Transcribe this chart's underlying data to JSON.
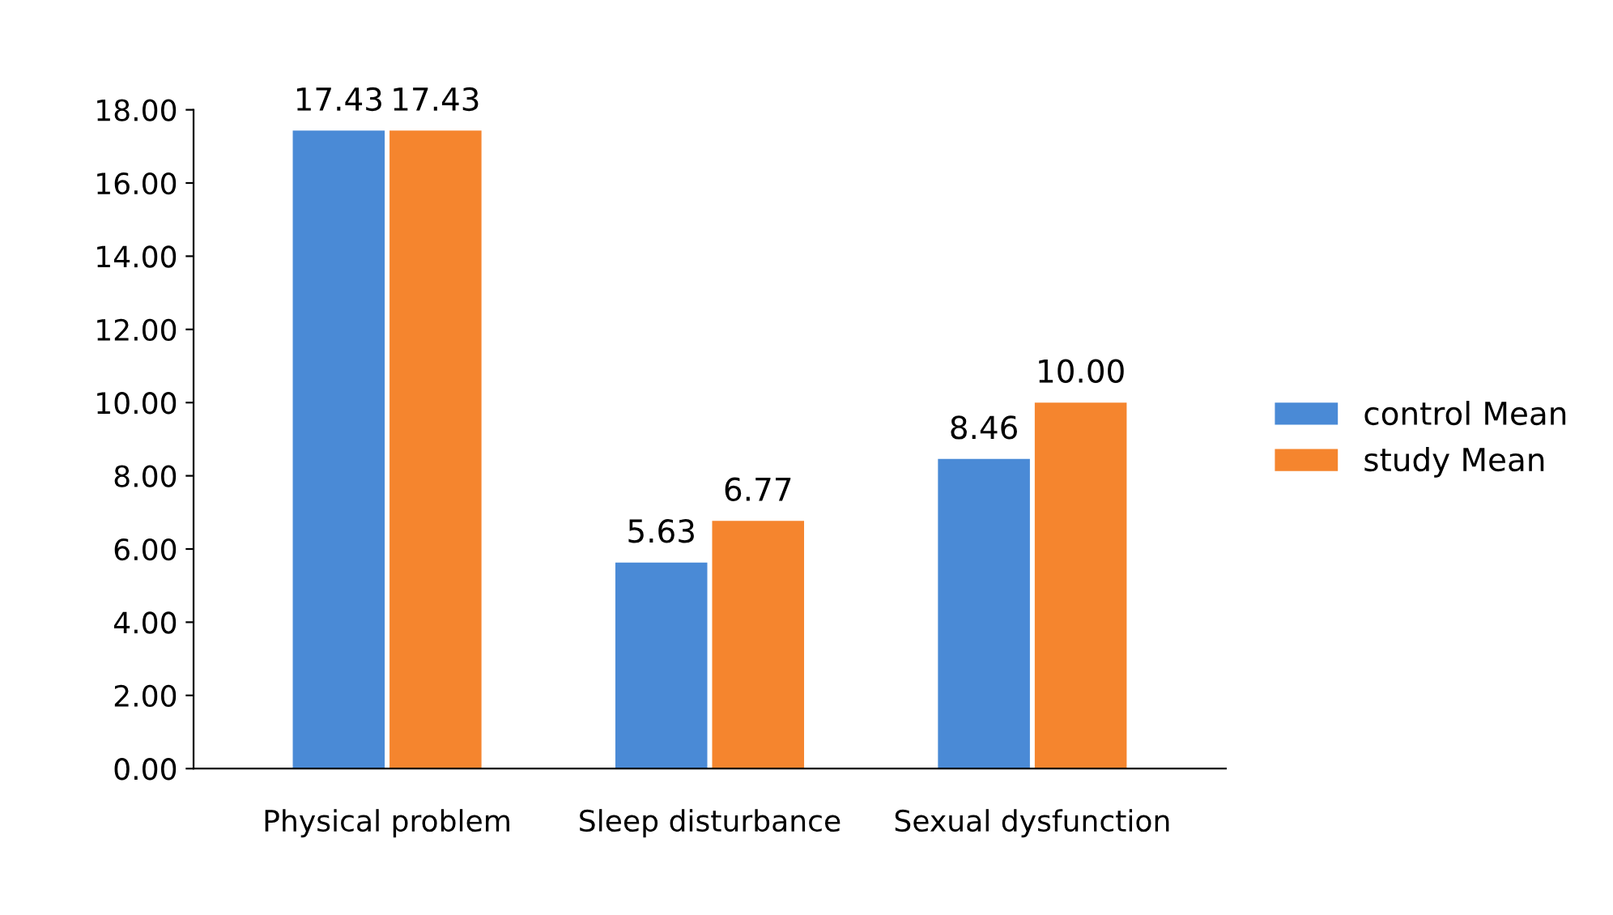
{
  "chart_data": {
    "type": "bar",
    "categories": [
      "Physical problem",
      "Sleep disturbance",
      "Sexual dysfunction"
    ],
    "series": [
      {
        "name": "control Mean",
        "color": "#4a8ad6",
        "values": [
          17.43,
          5.63,
          8.46
        ],
        "value_labels": [
          "17.43",
          "5.63",
          "8.46"
        ]
      },
      {
        "name": "study Mean",
        "color": "#f5852e",
        "values": [
          17.43,
          6.77,
          10.0
        ],
        "value_labels": [
          "17.43",
          "6.77",
          "10.00"
        ]
      }
    ],
    "ylim": [
      0,
      18
    ],
    "yticks": [
      {
        "value": 0,
        "label": "0.00"
      },
      {
        "value": 2,
        "label": "2.00"
      },
      {
        "value": 4,
        "label": "4.00"
      },
      {
        "value": 6,
        "label": "6.00"
      },
      {
        "value": 8,
        "label": "8.00"
      },
      {
        "value": 10,
        "label": "10.00"
      },
      {
        "value": 12,
        "label": "12.00"
      },
      {
        "value": 14,
        "label": "14.00"
      },
      {
        "value": 16,
        "label": "16.00"
      },
      {
        "value": 18,
        "label": "18.00"
      }
    ],
    "grid": false,
    "legend": "right"
  }
}
